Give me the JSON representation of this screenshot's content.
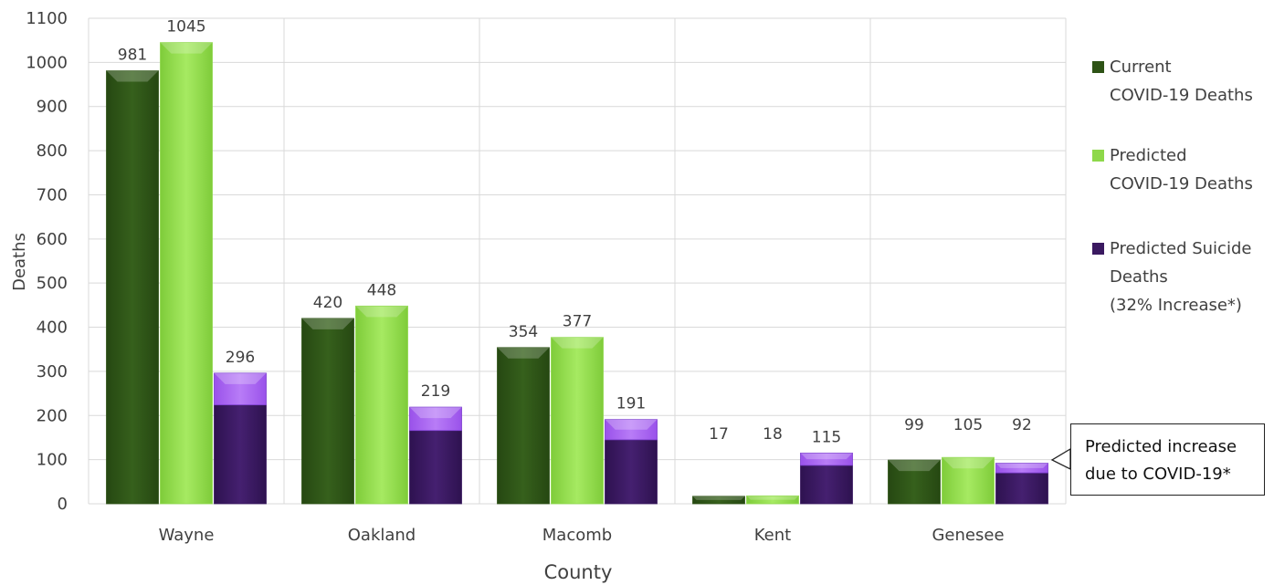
{
  "chart_data": {
    "type": "bar",
    "categories": [
      "Wayne",
      "Oakland",
      "Macomb",
      "Kent",
      "Genesee"
    ],
    "series": [
      {
        "name": "Current\nCOVID-19 Deaths",
        "values": [
          981,
          420,
          354,
          17,
          99
        ],
        "color": "#2e5316"
      },
      {
        "name": "Predicted\nCOVID-19 Deaths",
        "values": [
          1045,
          448,
          377,
          18,
          105
        ],
        "color": "#8ed84a"
      },
      {
        "name": "Predicted Suicide\nDeaths\n(32% Increase*)",
        "values": [
          296,
          219,
          191,
          115,
          92
        ],
        "base_values": [
          224,
          166,
          145,
          87,
          70
        ],
        "color": "#3a1960",
        "increase_color": "#a864f2"
      }
    ],
    "xlabel": "County",
    "ylabel": "Deaths",
    "ylim": [
      0,
      1100
    ],
    "yticks": [
      0,
      100,
      200,
      300,
      400,
      500,
      600,
      700,
      800,
      900,
      1000,
      1100
    ],
    "grid": true,
    "legend": "right",
    "annotation": "Predicted increase\ndue to COVID-19*"
  }
}
